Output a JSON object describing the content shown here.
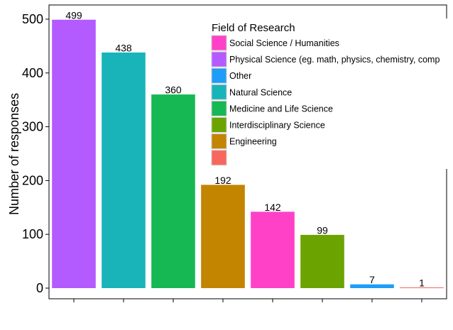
{
  "chart_data": {
    "type": "bar",
    "title": "",
    "xlabel": "",
    "ylabel": "Number of responses",
    "ylim": [
      0,
      525
    ],
    "yticks": [
      0,
      100,
      200,
      300,
      400,
      500
    ],
    "grid": false,
    "legend_placement": "top-right, overlapping plot",
    "legend_title": "Field of Research",
    "categories": [
      "",
      "",
      "",
      "",
      "",
      "",
      "",
      ""
    ],
    "values": [
      499,
      438,
      360,
      192,
      142,
      99,
      7,
      1
    ],
    "bar_fields": [
      "Physical Science (eg. math, physics, chemistry, comp",
      "Natural Science",
      "Medicine and Life Science",
      "Engineering",
      "Social Science / Humanities",
      "Interdisciplinary Science",
      "Other",
      ""
    ],
    "legend": [
      {
        "label": "Social Science / Humanities",
        "color": "#FF41C8"
      },
      {
        "label": "Physical Science (eg. math, physics, chemistry, comp",
        "color": "#B45BFF"
      },
      {
        "label": "Other",
        "color": "#1E9DF8"
      },
      {
        "label": "Natural Science",
        "color": "#18B4BA"
      },
      {
        "label": "Medicine and Life Science",
        "color": "#16B853"
      },
      {
        "label": "Interdisciplinary Science",
        "color": "#6BA400"
      },
      {
        "label": "Engineering",
        "color": "#C38400"
      },
      {
        "label": "",
        "color": "#F8665E"
      }
    ],
    "bar_colors": [
      "#B45BFF",
      "#18B4BA",
      "#16B853",
      "#C38400",
      "#FF41C8",
      "#6BA400",
      "#1E9DF8",
      "#F8665E"
    ]
  }
}
